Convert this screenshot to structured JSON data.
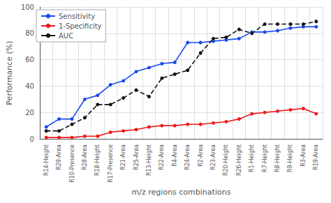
{
  "chart_data": {
    "type": "line",
    "categories": [
      "R14-Height",
      "R29-Area",
      "R10-Presence",
      "R28-Area",
      "R18-Height",
      "R17-Presence",
      "R21-Area",
      "R25-Area",
      "R13-Height",
      "R22-Area",
      "R4-Area",
      "R24-Area",
      "R2-Area",
      "R23-Area",
      "R20-Height",
      "R26-Height",
      "R1-Height",
      "R7-Height",
      "R8-Height",
      "R9-Height",
      "R3-Area",
      "R19-Area"
    ],
    "series": [
      {
        "name": "Sensitivity",
        "color": "#1a4aee",
        "marker": "circle",
        "line_style": "solid",
        "values": [
          9,
          15,
          15,
          30,
          33,
          41,
          44,
          51,
          54,
          57,
          58,
          73,
          73,
          74,
          75,
          76,
          81,
          81,
          82,
          84,
          85,
          85
        ]
      },
      {
        "name": "1-Specificity",
        "color": "#ee1a1a",
        "marker": "circle",
        "line_style": "solid",
        "values": [
          1,
          1,
          1,
          2,
          2,
          5,
          6,
          7,
          9,
          10,
          10,
          11,
          11,
          12,
          13,
          15,
          19,
          20,
          21,
          22,
          23,
          19
        ]
      },
      {
        "name": "AUC",
        "color": "#111111",
        "marker": "circle",
        "line_style": "dashed",
        "values": [
          6,
          6,
          11,
          16,
          26,
          26,
          31,
          37,
          32,
          46,
          49,
          52,
          65,
          76,
          77,
          83,
          80,
          87,
          87,
          87,
          87,
          89
        ]
      }
    ],
    "xlabel": "m/z regions combinations",
    "ylabel": "Performance (%)",
    "ylim": [
      0,
      100
    ],
    "yticks": [
      0,
      20,
      40,
      60,
      80,
      100
    ],
    "grid": true,
    "legend": "upper left"
  }
}
